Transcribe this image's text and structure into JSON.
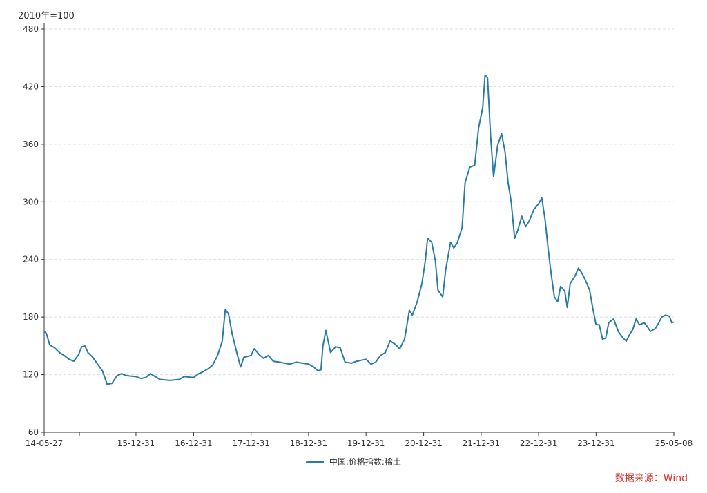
{
  "chart_data": {
    "type": "line",
    "unit_label": "2010年=100",
    "source_label": "数据来源：Wind",
    "legend_placement": "bottom-center",
    "grid": "horizontal-dashed",
    "ylim": [
      60,
      480
    ],
    "y_ticks": [
      60,
      120,
      180,
      240,
      300,
      360,
      420,
      480
    ],
    "x_start": "2014-05-27",
    "x_end": "2025-05-08",
    "x_ticks": [
      {
        "date": "2014-05-27",
        "label": "14-05-27"
      },
      {
        "date": "2015-12-31",
        "label": "15-12-31"
      },
      {
        "date": "2016-12-31",
        "label": "16-12-31"
      },
      {
        "date": "2017-12-31",
        "label": "17-12-31"
      },
      {
        "date": "2018-12-31",
        "label": "18-12-31"
      },
      {
        "date": "2019-12-31",
        "label": "19-12-31"
      },
      {
        "date": "2020-12-31",
        "label": "20-12-31"
      },
      {
        "date": "2021-12-31",
        "label": "21-12-31"
      },
      {
        "date": "2022-12-31",
        "label": "22-12-31"
      },
      {
        "date": "2023-12-31",
        "label": "23-12-31"
      },
      {
        "date": "2025-05-08",
        "label": "25-05-08"
      }
    ],
    "series": [
      {
        "name": "中国:价格指数:稀土",
        "color": "#2a7aa6",
        "points": [
          [
            "2014-05-27",
            165
          ],
          [
            "2014-06-10",
            163
          ],
          [
            "2014-07-01",
            151
          ],
          [
            "2014-08-01",
            148
          ],
          [
            "2014-09-01",
            143
          ],
          [
            "2014-10-01",
            140
          ],
          [
            "2014-11-01",
            136
          ],
          [
            "2014-12-01",
            134
          ],
          [
            "2015-01-01",
            141
          ],
          [
            "2015-01-20",
            149
          ],
          [
            "2015-02-10",
            150
          ],
          [
            "2015-03-01",
            143
          ],
          [
            "2015-04-01",
            138
          ],
          [
            "2015-05-01",
            131
          ],
          [
            "2015-06-01",
            124
          ],
          [
            "2015-07-01",
            110
          ],
          [
            "2015-08-01",
            111
          ],
          [
            "2015-09-01",
            119
          ],
          [
            "2015-10-01",
            121
          ],
          [
            "2015-11-01",
            119
          ],
          [
            "2015-12-31",
            118
          ],
          [
            "2016-02-01",
            116
          ],
          [
            "2016-03-01",
            117
          ],
          [
            "2016-04-01",
            121
          ],
          [
            "2016-05-01",
            118
          ],
          [
            "2016-06-01",
            115
          ],
          [
            "2016-08-01",
            114
          ],
          [
            "2016-10-01",
            115
          ],
          [
            "2016-11-01",
            118
          ],
          [
            "2016-12-31",
            117
          ],
          [
            "2017-02-01",
            121
          ],
          [
            "2017-03-01",
            123
          ],
          [
            "2017-04-01",
            126
          ],
          [
            "2017-05-01",
            130
          ],
          [
            "2017-06-01",
            140
          ],
          [
            "2017-07-01",
            155
          ],
          [
            "2017-07-20",
            188
          ],
          [
            "2017-08-10",
            183
          ],
          [
            "2017-09-01",
            163
          ],
          [
            "2017-10-01",
            143
          ],
          [
            "2017-10-25",
            128
          ],
          [
            "2017-11-15",
            138
          ],
          [
            "2017-12-31",
            140
          ],
          [
            "2018-01-20",
            147
          ],
          [
            "2018-02-20",
            141
          ],
          [
            "2018-03-20",
            137
          ],
          [
            "2018-04-20",
            140
          ],
          [
            "2018-05-20",
            134
          ],
          [
            "2018-07-01",
            133
          ],
          [
            "2018-09-01",
            131
          ],
          [
            "2018-10-15",
            133
          ],
          [
            "2018-12-31",
            131
          ],
          [
            "2019-02-01",
            128
          ],
          [
            "2019-03-01",
            124
          ],
          [
            "2019-03-20",
            125
          ],
          [
            "2019-04-01",
            150
          ],
          [
            "2019-04-20",
            166
          ],
          [
            "2019-05-20",
            143
          ],
          [
            "2019-06-20",
            149
          ],
          [
            "2019-07-20",
            148
          ],
          [
            "2019-08-20",
            133
          ],
          [
            "2019-10-01",
            132
          ],
          [
            "2019-11-01",
            134
          ],
          [
            "2019-12-31",
            136
          ],
          [
            "2020-02-01",
            131
          ],
          [
            "2020-03-01",
            133
          ],
          [
            "2020-04-01",
            140
          ],
          [
            "2020-05-01",
            143
          ],
          [
            "2020-06-01",
            155
          ],
          [
            "2020-07-01",
            152
          ],
          [
            "2020-08-01",
            147
          ],
          [
            "2020-09-01",
            157
          ],
          [
            "2020-10-01",
            187
          ],
          [
            "2020-10-20",
            182
          ],
          [
            "2020-11-20",
            196
          ],
          [
            "2020-12-20",
            215
          ],
          [
            "2021-01-10",
            238
          ],
          [
            "2021-01-25",
            262
          ],
          [
            "2021-02-20",
            258
          ],
          [
            "2021-03-15",
            239
          ],
          [
            "2021-04-01",
            208
          ],
          [
            "2021-05-01",
            201
          ],
          [
            "2021-05-20",
            229
          ],
          [
            "2021-06-20",
            258
          ],
          [
            "2021-07-10",
            252
          ],
          [
            "2021-08-01",
            257
          ],
          [
            "2021-09-01",
            273
          ],
          [
            "2021-09-20",
            320
          ],
          [
            "2021-10-20",
            336
          ],
          [
            "2021-11-20",
            338
          ],
          [
            "2021-12-15",
            377
          ],
          [
            "2022-01-10",
            398
          ],
          [
            "2022-01-25",
            432
          ],
          [
            "2022-02-10",
            429
          ],
          [
            "2022-03-01",
            369
          ],
          [
            "2022-03-20",
            326
          ],
          [
            "2022-04-15",
            359
          ],
          [
            "2022-05-10",
            371
          ],
          [
            "2022-06-01",
            352
          ],
          [
            "2022-06-20",
            320
          ],
          [
            "2022-07-10",
            300
          ],
          [
            "2022-08-01",
            262
          ],
          [
            "2022-08-20",
            270
          ],
          [
            "2022-09-15",
            285
          ],
          [
            "2022-10-10",
            274
          ],
          [
            "2022-11-01",
            280
          ],
          [
            "2022-12-01",
            292
          ],
          [
            "2022-12-31",
            298
          ],
          [
            "2023-01-20",
            304
          ],
          [
            "2023-02-10",
            282
          ],
          [
            "2023-03-01",
            252
          ],
          [
            "2023-03-20",
            226
          ],
          [
            "2023-04-10",
            201
          ],
          [
            "2023-05-01",
            196
          ],
          [
            "2023-05-20",
            212
          ],
          [
            "2023-06-15",
            207
          ],
          [
            "2023-07-01",
            190
          ],
          [
            "2023-07-20",
            215
          ],
          [
            "2023-08-20",
            223
          ],
          [
            "2023-09-10",
            231
          ],
          [
            "2023-10-01",
            226
          ],
          [
            "2023-10-20",
            220
          ],
          [
            "2023-11-20",
            208
          ],
          [
            "2023-12-10",
            189
          ],
          [
            "2023-12-31",
            172
          ],
          [
            "2024-01-20",
            172
          ],
          [
            "2024-02-10",
            157
          ],
          [
            "2024-03-01",
            158
          ],
          [
            "2024-03-20",
            174
          ],
          [
            "2024-04-20",
            178
          ],
          [
            "2024-05-20",
            165
          ],
          [
            "2024-06-20",
            158
          ],
          [
            "2024-07-10",
            155
          ],
          [
            "2024-07-31",
            162
          ],
          [
            "2024-08-20",
            167
          ],
          [
            "2024-09-10",
            178
          ],
          [
            "2024-10-01",
            172
          ],
          [
            "2024-11-01",
            174
          ],
          [
            "2024-11-20",
            170
          ],
          [
            "2024-12-10",
            165
          ],
          [
            "2025-01-10",
            168
          ],
          [
            "2025-02-01",
            174
          ],
          [
            "2025-02-20",
            180
          ],
          [
            "2025-03-15",
            182
          ],
          [
            "2025-04-10",
            181
          ],
          [
            "2025-04-25",
            174
          ],
          [
            "2025-05-08",
            175
          ]
        ]
      }
    ]
  }
}
